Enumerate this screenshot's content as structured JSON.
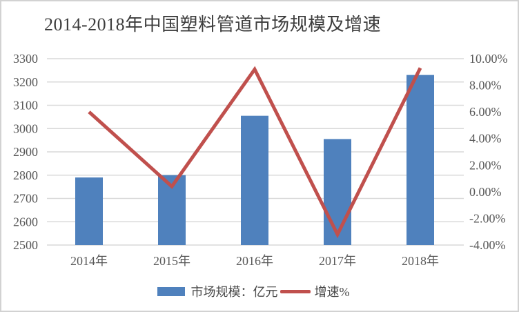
{
  "title": "2014-2018年中国塑料管道市场规模及增速",
  "colors": {
    "bar": "#4F81BD",
    "line": "#C0504D",
    "grid": "#D9D9D9",
    "axis_text": "#595959",
    "title_text": "#3D3D3D",
    "legend_text": "#4A4A4A",
    "frame_border": "#D2D2D2"
  },
  "legend": [
    {
      "label": "市场规模：亿元",
      "type": "bar"
    },
    {
      "label": "增速%",
      "type": "line"
    }
  ],
  "chart_data": {
    "type": "bar+line combo",
    "title": "2014-2018年中国塑料管道市场规模及增速",
    "categories": [
      "2014年",
      "2015年",
      "2016年",
      "2017年",
      "2018年"
    ],
    "series": [
      {
        "name": "市场规模：亿元",
        "type": "bar",
        "axis": "left",
        "values": [
          2790,
          2800,
          3055,
          2955,
          3230
        ]
      },
      {
        "name": "增速%",
        "type": "line",
        "axis": "right",
        "values": [
          6.0,
          0.4,
          9.2,
          -3.2,
          9.3
        ]
      }
    ],
    "left_axis": {
      "min": 2500,
      "max": 3300,
      "step": 100,
      "ticks": [
        "3300",
        "3200",
        "3100",
        "3000",
        "2900",
        "2800",
        "2700",
        "2600",
        "2500"
      ]
    },
    "right_axis": {
      "min": -4,
      "max": 10,
      "step": 2,
      "ticks": [
        "10.00%",
        "8.00%",
        "6.00%",
        "4.00%",
        "2.00%",
        "0.00%",
        "-2.00%",
        "-4.00%"
      ]
    },
    "grid": true,
    "gridlines_follow": "left_axis",
    "legend_position": "bottom"
  }
}
